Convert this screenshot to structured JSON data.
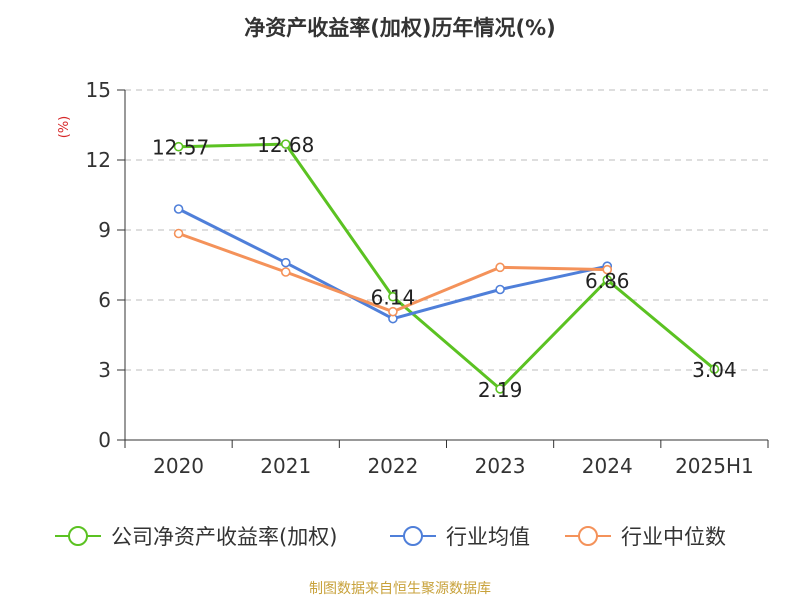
{
  "chart_data": {
    "type": "line",
    "title": "净资产收益率(加权)历年情况(%)",
    "ylabel": "(%)",
    "categories": [
      "2020",
      "2021",
      "2022",
      "2023",
      "2024",
      "2025H1"
    ],
    "ylim": [
      0,
      15
    ],
    "yticks": [
      0,
      3,
      6,
      9,
      12,
      15
    ],
    "grid": true,
    "legend_position": "bottom",
    "series": [
      {
        "name": "公司净资产收益率(加权)",
        "color": "#5bc222",
        "values": [
          12.57,
          12.68,
          6.14,
          2.19,
          6.86,
          3.04
        ],
        "labels": [
          "12.57",
          "12.68",
          "6.14",
          "2.19",
          "6.86",
          "3.04"
        ]
      },
      {
        "name": "行业均值",
        "color": "#4f7fd9",
        "values": [
          9.9,
          7.6,
          5.2,
          6.45,
          7.45,
          null
        ]
      },
      {
        "name": "行业中位数",
        "color": "#f4925a",
        "values": [
          8.85,
          7.2,
          5.5,
          7.4,
          7.3,
          null
        ]
      }
    ]
  },
  "source_text": "制图数据来自恒生聚源数据库"
}
